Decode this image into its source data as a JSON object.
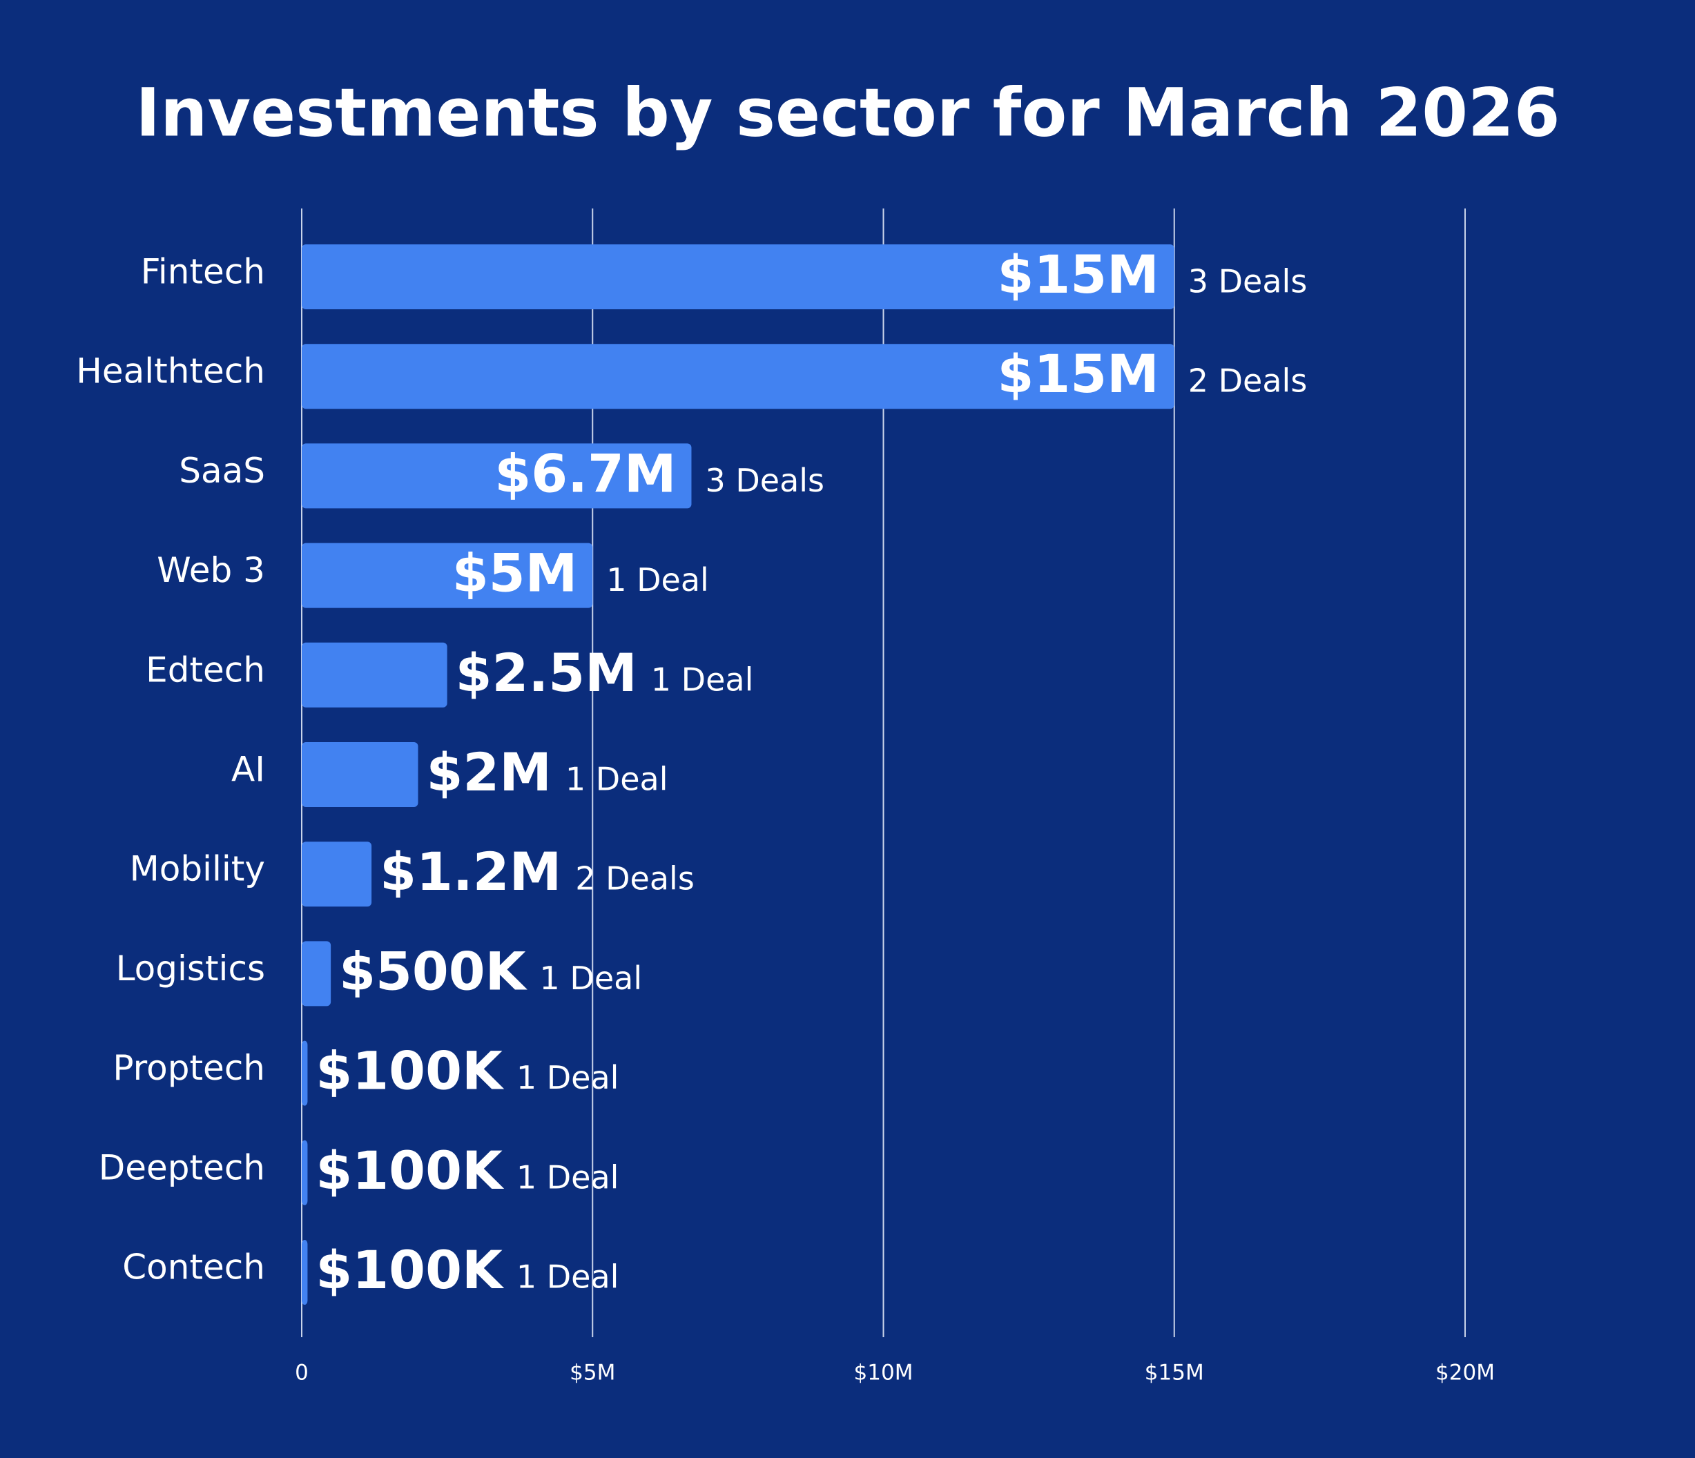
{
  "chart_data": {
    "type": "hbar",
    "title": "Investments by sector for March 2026",
    "categories": [
      "Fintech",
      "Healthtech",
      "SaaS",
      "Web 3",
      "Edtech",
      "AI",
      "Mobility",
      "Logistics",
      "Proptech",
      "Deeptech",
      "Contech"
    ],
    "values": [
      15000000,
      15000000,
      6700000,
      5000000,
      2500000,
      2000000,
      1200000,
      500000,
      100000,
      100000,
      100000
    ],
    "value_labels": [
      "$15M",
      "$15M",
      "$6.7M",
      "$5M",
      "$2.5M",
      "$2M",
      "$1.2M",
      "$500K",
      "$100K",
      "$100K",
      "$100K"
    ],
    "deal_labels": [
      "3 Deals",
      "2 Deals",
      "3 Deals",
      "1 Deal",
      "1 Deal",
      "1 Deal",
      "2 Deals",
      "1 Deal",
      "1 Deal",
      "1 Deal",
      "1 Deal"
    ],
    "color": "#4282f1",
    "xlim": [
      0,
      20000000
    ],
    "xticks": [
      0,
      {
        "value": 5000000,
        "label": "$5M"
      },
      {
        "value": 10000000,
        "label": "$10M"
      },
      {
        "value": 15000000,
        "label": "$15M"
      },
      {
        "value": 20000000,
        "label": "$20M"
      }
    ],
    "grid": true
  }
}
